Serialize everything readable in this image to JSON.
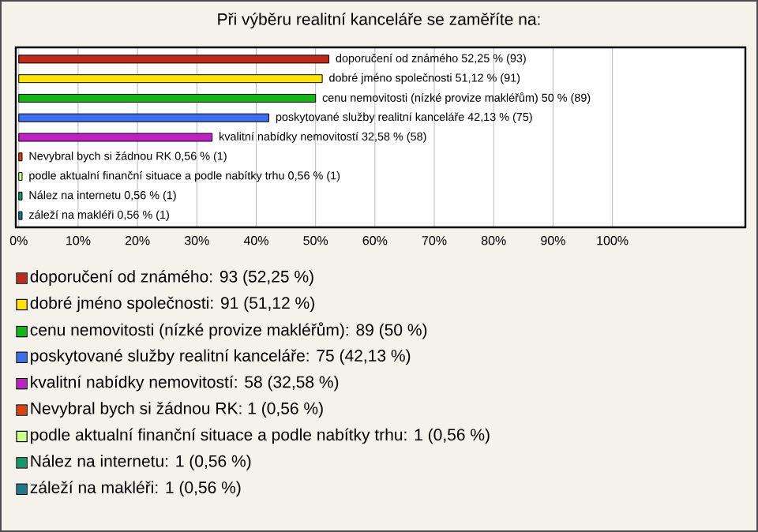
{
  "chart_data": {
    "type": "bar",
    "orientation": "horizontal",
    "title": "Při výběru realitní kanceláře se zaměříte na:",
    "categories": [
      null,
      null,
      null,
      null,
      null,
      null,
      null,
      null,
      null
    ],
    "values": [
      52.25,
      51.12,
      50,
      42.13,
      32.58,
      0.56,
      0.56,
      0.56,
      0.56
    ],
    "value_labels": [
      "doporučení od známého 52,25 % (93)",
      "dobré jméno společnosti 51,12 % (91)",
      "cenu nemovitosti (nízké provize makléřům) 50 % (89)",
      "poskytované služby realitní kanceláře 42,13 % (75)",
      "kvalitní nabídky nemovitostí 32,58 % (58)",
      "Nevybral bych si žádnou RK 0,56 % (1)",
      "podle aktualní finanční situace a podle nabítky trhu 0,56 % (1)",
      "Nález na internetu 0,56 % (1)",
      "záleží na makléři 0,56 % (1)"
    ],
    "colors": [
      "#c0281a",
      "#ffe400",
      "#11b811",
      "#3a6ff0",
      "#c020c8",
      "#e0400c",
      "#ccff88",
      "#12996a",
      "#1a7a8a"
    ],
    "xlim": [
      -0.5,
      122.4
    ],
    "xticks": [
      {
        "value": 0,
        "label": "0%"
      },
      {
        "value": 10,
        "label": "10%"
      },
      {
        "value": 20,
        "label": "20%"
      },
      {
        "value": 30,
        "label": "30%"
      },
      {
        "value": 40,
        "label": "40%"
      },
      {
        "value": 50,
        "label": "50%"
      },
      {
        "value": 60,
        "label": "60%"
      },
      {
        "value": 70,
        "label": "70%"
      },
      {
        "value": 80,
        "label": "80%"
      },
      {
        "value": 90,
        "label": "90%"
      },
      {
        "value": 100,
        "label": "100%"
      }
    ],
    "tick_labels": "x",
    "grid": "x",
    "annotations": [
      "doporučení od známého: 93 (52,25 %)",
      "dobré jméno společnosti: 91 (51,12 %)",
      "cenu nemovitosti (nízké provize makléřům): 89 (50 %)",
      "poskytované služby realitní kanceláře: 75 (42,13 %)",
      "kvalitní nabídky nemovitostí: 58 (32,58 %)",
      "Nevybral bych si žádnou RK: 1 (0,56 %)",
      "podle aktualní finanční situace a podle nabítky trhu: 1 (0,56 %)",
      "Nález na internetu: 1 (0,56 %)",
      "záleží na makléři: 1 (0,56 %)"
    ]
  }
}
